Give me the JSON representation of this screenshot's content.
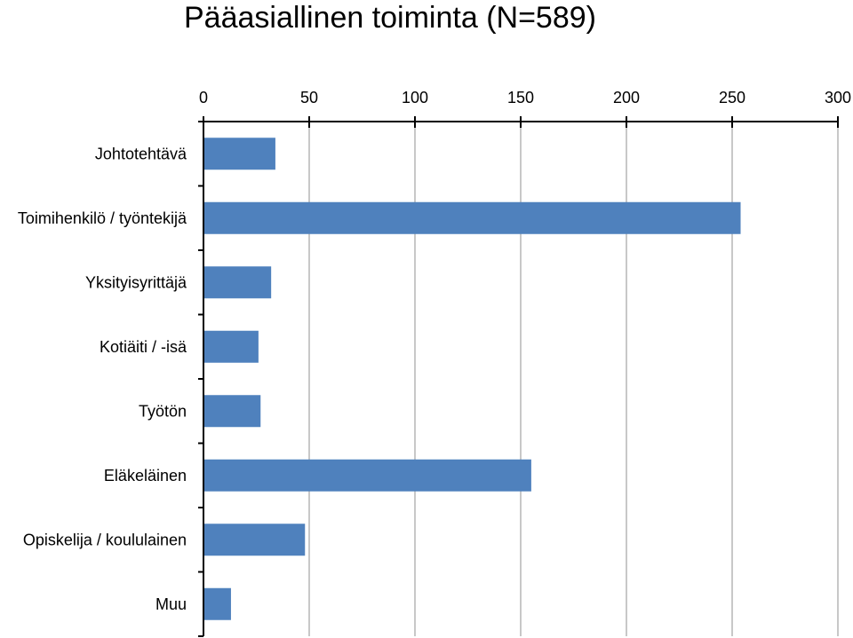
{
  "chart_data": {
    "type": "bar",
    "orientation": "horizontal",
    "title": "Pääasiallinen toiminta (N=589)",
    "categories": [
      "Johtotehtävä",
      "Toimihenkilö / työntekijä",
      "Yksityisyrittäjä",
      "Kotiäiti / -isä",
      "Työtön",
      "Eläkeläinen",
      "Opiskelija / koululainen",
      "Muu"
    ],
    "values": [
      34,
      254,
      32,
      26,
      27,
      155,
      48,
      13
    ],
    "xlim": [
      0,
      300
    ],
    "xticks": [
      "0",
      "50",
      "100",
      "150",
      "200",
      "250",
      "300"
    ],
    "x_axis_position": "top",
    "grid": true,
    "legend": "none",
    "bar_color": "#4F81BD"
  }
}
